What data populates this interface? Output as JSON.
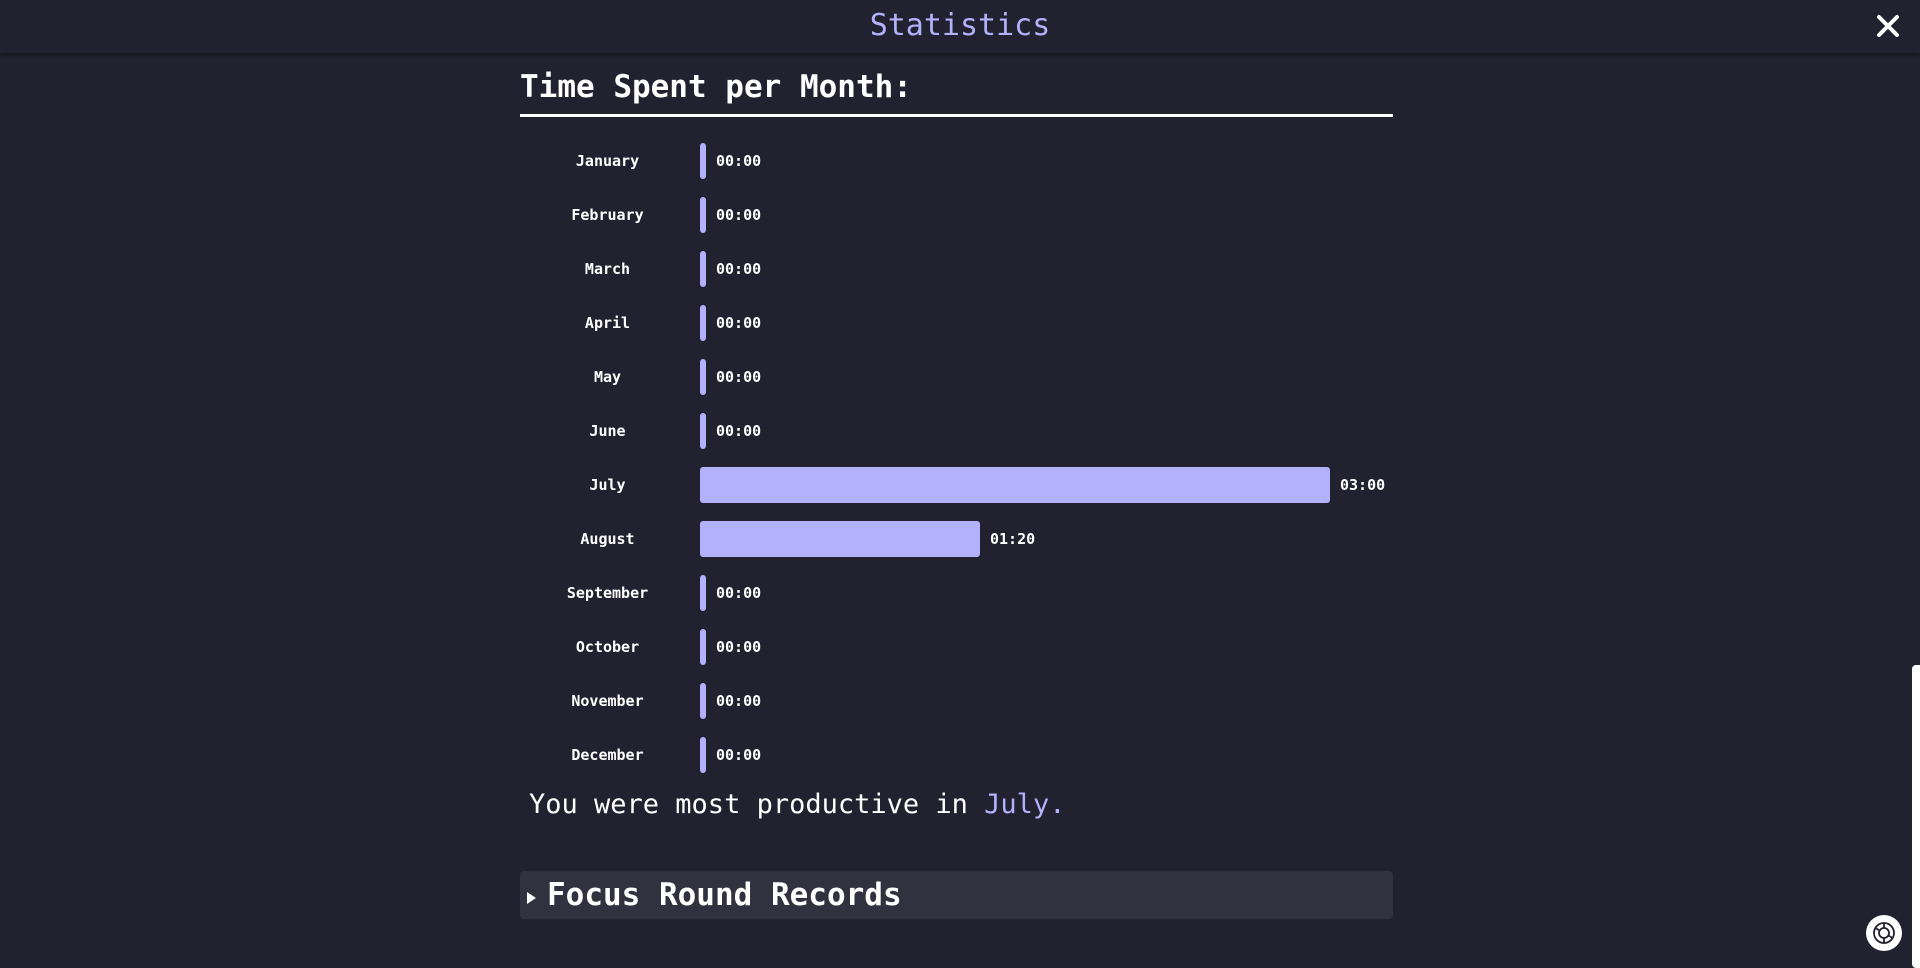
{
  "header": {
    "title": "Statistics",
    "close_icon": "close-icon"
  },
  "section": {
    "title": "Time Spent per Month:"
  },
  "chart_data": {
    "type": "bar",
    "orientation": "horizontal",
    "categories": [
      "January",
      "February",
      "March",
      "April",
      "May",
      "June",
      "July",
      "August",
      "September",
      "October",
      "November",
      "December"
    ],
    "value_labels": [
      "00:00",
      "00:00",
      "00:00",
      "00:00",
      "00:00",
      "00:00",
      "03:00",
      "01:20",
      "00:00",
      "00:00",
      "00:00",
      "00:00"
    ],
    "values_minutes": [
      0,
      0,
      0,
      0,
      0,
      0,
      180,
      80,
      0,
      0,
      0,
      0
    ],
    "xlim": [
      0,
      180
    ],
    "title": "",
    "xlabel": "",
    "ylabel": "",
    "grid": false,
    "bar_color": "#b3b1fb"
  },
  "summary": {
    "prefix": "You were most productive in",
    "month": "July."
  },
  "focus_records": {
    "label": "Focus Round Records",
    "icon": "triangle-right-icon",
    "expanded": false
  },
  "colors": {
    "background": "#22212f",
    "accent": "#b3b1fb",
    "panel": "#32313f",
    "text": "#ffffff"
  },
  "assistant": {
    "icon": "assistant-icon"
  }
}
